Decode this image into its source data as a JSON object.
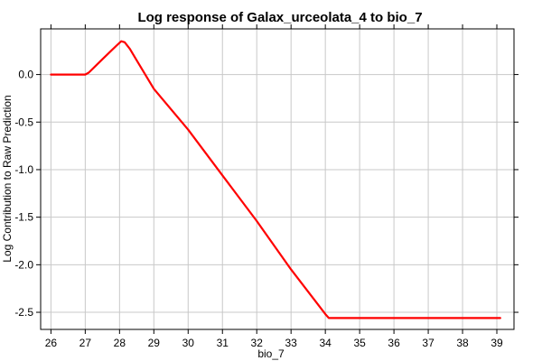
{
  "chart_data": {
    "type": "line",
    "title": "Log response of Galax_urceolata_4 to bio_7",
    "xlabel": "bio_7",
    "ylabel": "Log Contribution to Raw Prediction",
    "xlim": [
      25.7,
      39.5
    ],
    "ylim": [
      -2.68,
      0.48
    ],
    "grid": true,
    "xticks": [
      26,
      27,
      28,
      29,
      30,
      31,
      32,
      33,
      34,
      35,
      36,
      37,
      38,
      39
    ],
    "yticks": [
      0.0,
      -0.5,
      -1.0,
      -1.5,
      -2.0,
      -2.5
    ],
    "ytick_labels": [
      "0.0",
      "-0.5",
      "-1.0",
      "-1.5",
      "-2.0",
      "-2.5"
    ],
    "series": [
      {
        "color": "#ff0000",
        "x": [
          26.0,
          26.5,
          27.0,
          27.1,
          27.3,
          27.5,
          27.7,
          27.9,
          28.05,
          28.15,
          28.3,
          28.5,
          29.0,
          30.0,
          31.0,
          32.0,
          33.0,
          34.0,
          34.1,
          35.0,
          36.0,
          37.0,
          38.0,
          39.1
        ],
        "y": [
          0.0,
          0.0,
          0.0,
          0.02,
          0.09,
          0.16,
          0.23,
          0.3,
          0.35,
          0.34,
          0.27,
          0.15,
          -0.15,
          -0.58,
          -1.06,
          -1.54,
          -2.05,
          -2.52,
          -2.56,
          -2.56,
          -2.56,
          -2.56,
          -2.56,
          -2.56
        ]
      }
    ]
  }
}
